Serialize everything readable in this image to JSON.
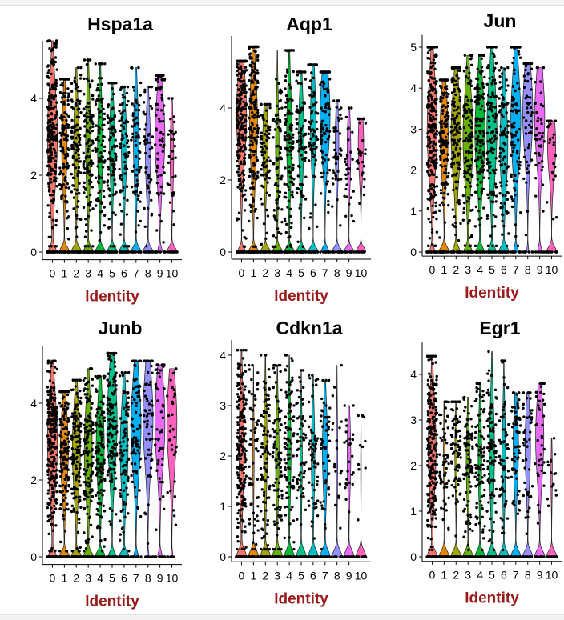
{
  "chart_data": [
    {
      "type": "violin",
      "title": "Hspa1a",
      "xlabel": "Identity",
      "ylabel": "",
      "categories": [
        "0",
        "1",
        "2",
        "3",
        "4",
        "5",
        "6",
        "7",
        "8",
        "9",
        "10"
      ],
      "ylim": [
        -0.2,
        5.5
      ],
      "yticks": [
        0,
        2,
        4
      ],
      "max": [
        5.5,
        4.5,
        4.8,
        5.0,
        4.9,
        4.4,
        4.3,
        4.8,
        4.3,
        4.6,
        4.0
      ],
      "median_expressed": [
        3.0,
        2.8,
        2.8,
        2.8,
        2.8,
        2.8,
        2.7,
        2.9,
        2.6,
        3.0,
        2.5
      ],
      "zero_fraction": [
        0.3,
        0.5,
        0.5,
        0.5,
        0.5,
        0.5,
        0.5,
        0.5,
        0.5,
        0.2,
        0.6
      ],
      "point_count": [
        220,
        120,
        110,
        120,
        100,
        95,
        80,
        70,
        45,
        70,
        30
      ]
    },
    {
      "type": "violin",
      "title": "Aqp1",
      "xlabel": "Identity",
      "ylabel": "",
      "categories": [
        "0",
        "1",
        "2",
        "3",
        "4",
        "5",
        "6",
        "7",
        "8",
        "9",
        "10"
      ],
      "ylim": [
        -0.2,
        6.0
      ],
      "yticks": [
        0,
        2,
        4
      ],
      "max": [
        5.3,
        5.7,
        4.1,
        5.6,
        5.6,
        5.0,
        5.2,
        5.0,
        4.2,
        4.0,
        3.7
      ],
      "median_expressed": [
        3.8,
        3.6,
        3.0,
        2.8,
        3.2,
        3.2,
        3.6,
        3.8,
        3.0,
        2.8,
        3.0
      ],
      "zero_fraction": [
        0.3,
        0.4,
        0.5,
        0.6,
        0.5,
        0.5,
        0.5,
        0.3,
        0.6,
        0.6,
        0.5
      ],
      "point_count": [
        250,
        180,
        80,
        70,
        110,
        90,
        80,
        90,
        45,
        30,
        30
      ]
    },
    {
      "type": "violin",
      "title": "Jun",
      "xlabel": "Identity",
      "ylabel": "",
      "categories": [
        "0",
        "1",
        "2",
        "3",
        "4",
        "5",
        "6",
        "7",
        "8",
        "9",
        "10"
      ],
      "ylim": [
        -0.1,
        5.3
      ],
      "yticks": [
        0,
        1,
        2,
        3,
        4,
        5
      ],
      "max": [
        5.0,
        4.2,
        4.5,
        4.8,
        4.8,
        5.0,
        4.5,
        5.0,
        4.6,
        4.5,
        3.2
      ],
      "median_expressed": [
        3.0,
        2.9,
        2.9,
        2.8,
        2.9,
        3.0,
        2.6,
        3.2,
        3.4,
        3.3,
        2.6
      ],
      "zero_fraction": [
        0.2,
        0.4,
        0.3,
        0.3,
        0.3,
        0.3,
        0.4,
        0.2,
        0.1,
        0.2,
        0.4
      ],
      "point_count": [
        220,
        130,
        130,
        120,
        120,
        110,
        90,
        80,
        55,
        40,
        25
      ]
    },
    {
      "type": "violin",
      "title": "Junb",
      "xlabel": "Identity",
      "ylabel": "",
      "categories": [
        "0",
        "1",
        "2",
        "3",
        "4",
        "5",
        "6",
        "7",
        "8",
        "9",
        "10"
      ],
      "ylim": [
        -0.2,
        5.5
      ],
      "yticks": [
        0,
        2,
        4
      ],
      "max": [
        5.1,
        4.3,
        4.6,
        4.9,
        4.7,
        5.3,
        4.8,
        5.1,
        5.1,
        5.0,
        4.9
      ],
      "median_expressed": [
        3.0,
        2.8,
        2.8,
        2.8,
        2.9,
        3.5,
        2.8,
        3.4,
        3.6,
        3.5,
        3.5
      ],
      "zero_fraction": [
        0.3,
        0.4,
        0.4,
        0.4,
        0.4,
        0.3,
        0.4,
        0.2,
        0.1,
        0.2,
        0.1
      ],
      "point_count": [
        240,
        140,
        130,
        130,
        120,
        140,
        90,
        80,
        60,
        45,
        30
      ]
    },
    {
      "type": "violin",
      "title": "Cdkn1a",
      "xlabel": "Identity",
      "ylabel": "",
      "categories": [
        "0",
        "1",
        "2",
        "3",
        "4",
        "5",
        "6",
        "7",
        "8",
        "9",
        "10"
      ],
      "ylim": [
        -0.1,
        4.3
      ],
      "yticks": [
        0,
        1,
        2,
        3,
        4
      ],
      "max": [
        4.1,
        3.8,
        4.0,
        3.8,
        4.0,
        3.7,
        3.6,
        3.5,
        3.8,
        3.0,
        2.8
      ],
      "median_expressed": [
        2.2,
        2.1,
        2.1,
        2.0,
        2.1,
        2.0,
        2.0,
        2.1,
        2.0,
        2.0,
        1.8
      ],
      "zero_fraction": [
        0.5,
        0.8,
        0.6,
        0.6,
        0.6,
        0.7,
        0.6,
        0.5,
        0.8,
        0.6,
        0.9
      ],
      "point_count": [
        190,
        60,
        90,
        90,
        90,
        60,
        60,
        55,
        20,
        25,
        10
      ]
    },
    {
      "type": "violin",
      "title": "Egr1",
      "xlabel": "Identity",
      "ylabel": "",
      "categories": [
        "0",
        "1",
        "2",
        "3",
        "4",
        "5",
        "6",
        "7",
        "8",
        "9",
        "10"
      ],
      "ylim": [
        -0.1,
        4.7
      ],
      "yticks": [
        0,
        1,
        2,
        3,
        4
      ],
      "max": [
        4.4,
        3.4,
        3.4,
        3.5,
        3.8,
        4.5,
        4.3,
        3.6,
        3.6,
        3.8,
        2.6
      ],
      "median_expressed": [
        2.4,
        2.2,
        2.2,
        2.1,
        2.2,
        2.3,
        2.2,
        2.4,
        2.4,
        2.6,
        1.8
      ],
      "zero_fraction": [
        0.4,
        0.8,
        0.7,
        0.6,
        0.6,
        0.5,
        0.6,
        0.5,
        0.5,
        0.4,
        0.8
      ],
      "point_count": [
        220,
        60,
        80,
        80,
        90,
        90,
        70,
        60,
        45,
        40,
        15
      ]
    }
  ],
  "colors": {
    "cluster_palette": [
      "#f8766d",
      "#e58700",
      "#a3a500",
      "#6bb100",
      "#00ba38",
      "#00c08b",
      "#00bfc4",
      "#00b0f6",
      "#9590ff",
      "#e76bf3",
      "#ff62bc"
    ],
    "axis_title": "#9b1a1a",
    "points": "#000000"
  }
}
